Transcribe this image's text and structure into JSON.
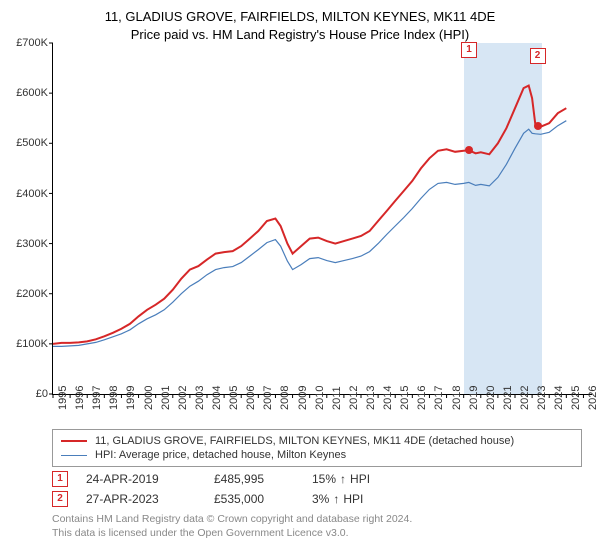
{
  "title_line1": "11, GLADIUS GROVE, FAIRFIELDS, MILTON KEYNES, MK11 4DE",
  "title_line2": "Price paid vs. HM Land Registry's House Price Index (HPI)",
  "chart": {
    "type": "line",
    "xlim": [
      1995,
      2026.5
    ],
    "ylim": [
      0,
      700000
    ],
    "ytick_step": 100000,
    "ytick_labels": [
      "£0",
      "£100K",
      "£200K",
      "£300K",
      "£400K",
      "£500K",
      "£600K",
      "£700K"
    ],
    "xticks": [
      1995,
      1996,
      1997,
      1998,
      1999,
      2000,
      2001,
      2002,
      2003,
      2004,
      2005,
      2006,
      2007,
      2008,
      2009,
      2010,
      2011,
      2012,
      2013,
      2014,
      2015,
      2016,
      2017,
      2018,
      2019,
      2020,
      2021,
      2022,
      2023,
      2024,
      2025,
      2026
    ],
    "background_color": "#ffffff",
    "border_color": "#000000",
    "tick_font_size": 11,
    "highlight_band_color": "#d7e6f4",
    "highlight_band_x": [
      2019.0,
      2023.6
    ],
    "series": [
      {
        "label": "11, GLADIUS GROVE, FAIRFIELDS, MILTON KEYNES, MK11 4DE (detached house)",
        "color": "#d62728",
        "line_width": 2,
        "points": [
          [
            1995.0,
            100000
          ],
          [
            1995.5,
            102000
          ],
          [
            1996.0,
            102000
          ],
          [
            1996.5,
            103000
          ],
          [
            1997.0,
            105000
          ],
          [
            1997.5,
            109000
          ],
          [
            1998.0,
            115000
          ],
          [
            1998.5,
            122000
          ],
          [
            1999.0,
            130000
          ],
          [
            1999.5,
            140000
          ],
          [
            2000.0,
            155000
          ],
          [
            2000.5,
            168000
          ],
          [
            2001.0,
            178000
          ],
          [
            2001.5,
            190000
          ],
          [
            2002.0,
            208000
          ],
          [
            2002.5,
            230000
          ],
          [
            2003.0,
            248000
          ],
          [
            2003.5,
            255000
          ],
          [
            2004.0,
            268000
          ],
          [
            2004.5,
            280000
          ],
          [
            2005.0,
            283000
          ],
          [
            2005.5,
            285000
          ],
          [
            2006.0,
            295000
          ],
          [
            2006.5,
            310000
          ],
          [
            2007.0,
            325000
          ],
          [
            2007.5,
            345000
          ],
          [
            2008.0,
            350000
          ],
          [
            2008.3,
            335000
          ],
          [
            2008.7,
            300000
          ],
          [
            2009.0,
            280000
          ],
          [
            2009.5,
            295000
          ],
          [
            2010.0,
            310000
          ],
          [
            2010.5,
            312000
          ],
          [
            2011.0,
            305000
          ],
          [
            2011.5,
            300000
          ],
          [
            2012.0,
            305000
          ],
          [
            2012.5,
            310000
          ],
          [
            2013.0,
            315000
          ],
          [
            2013.5,
            325000
          ],
          [
            2014.0,
            345000
          ],
          [
            2014.5,
            365000
          ],
          [
            2015.0,
            385000
          ],
          [
            2015.5,
            405000
          ],
          [
            2016.0,
            425000
          ],
          [
            2016.5,
            450000
          ],
          [
            2017.0,
            470000
          ],
          [
            2017.5,
            485000
          ],
          [
            2018.0,
            488000
          ],
          [
            2018.5,
            483000
          ],
          [
            2019.0,
            485000
          ],
          [
            2019.3,
            486000
          ],
          [
            2019.7,
            480000
          ],
          [
            2020.0,
            482000
          ],
          [
            2020.5,
            478000
          ],
          [
            2021.0,
            500000
          ],
          [
            2021.5,
            530000
          ],
          [
            2022.0,
            570000
          ],
          [
            2022.5,
            610000
          ],
          [
            2022.8,
            615000
          ],
          [
            2023.0,
            590000
          ],
          [
            2023.2,
            535000
          ],
          [
            2023.5,
            533000
          ],
          [
            2024.0,
            540000
          ],
          [
            2024.5,
            560000
          ],
          [
            2025.0,
            570000
          ]
        ]
      },
      {
        "label": "HPI: Average price, detached house, Milton Keynes",
        "color": "#4a7ebb",
        "line_width": 1.2,
        "points": [
          [
            1995.0,
            95000
          ],
          [
            1995.5,
            95000
          ],
          [
            1996.0,
            96000
          ],
          [
            1996.5,
            97000
          ],
          [
            1997.0,
            100000
          ],
          [
            1997.5,
            103000
          ],
          [
            1998.0,
            108000
          ],
          [
            1998.5,
            114000
          ],
          [
            1999.0,
            120000
          ],
          [
            1999.5,
            128000
          ],
          [
            2000.0,
            140000
          ],
          [
            2000.5,
            150000
          ],
          [
            2001.0,
            158000
          ],
          [
            2001.5,
            168000
          ],
          [
            2002.0,
            183000
          ],
          [
            2002.5,
            200000
          ],
          [
            2003.0,
            215000
          ],
          [
            2003.5,
            225000
          ],
          [
            2004.0,
            238000
          ],
          [
            2004.5,
            248000
          ],
          [
            2005.0,
            252000
          ],
          [
            2005.5,
            254000
          ],
          [
            2006.0,
            262000
          ],
          [
            2006.5,
            275000
          ],
          [
            2007.0,
            288000
          ],
          [
            2007.5,
            302000
          ],
          [
            2008.0,
            308000
          ],
          [
            2008.3,
            295000
          ],
          [
            2008.7,
            265000
          ],
          [
            2009.0,
            248000
          ],
          [
            2009.5,
            258000
          ],
          [
            2010.0,
            270000
          ],
          [
            2010.5,
            272000
          ],
          [
            2011.0,
            266000
          ],
          [
            2011.5,
            262000
          ],
          [
            2012.0,
            266000
          ],
          [
            2012.5,
            270000
          ],
          [
            2013.0,
            275000
          ],
          [
            2013.5,
            284000
          ],
          [
            2014.0,
            300000
          ],
          [
            2014.5,
            318000
          ],
          [
            2015.0,
            335000
          ],
          [
            2015.5,
            352000
          ],
          [
            2016.0,
            370000
          ],
          [
            2016.5,
            390000
          ],
          [
            2017.0,
            408000
          ],
          [
            2017.5,
            420000
          ],
          [
            2018.0,
            422000
          ],
          [
            2018.5,
            418000
          ],
          [
            2019.0,
            420000
          ],
          [
            2019.3,
            422000
          ],
          [
            2019.7,
            416000
          ],
          [
            2020.0,
            418000
          ],
          [
            2020.5,
            415000
          ],
          [
            2021.0,
            432000
          ],
          [
            2021.5,
            458000
          ],
          [
            2022.0,
            490000
          ],
          [
            2022.5,
            520000
          ],
          [
            2022.8,
            528000
          ],
          [
            2023.0,
            520000
          ],
          [
            2023.2,
            519000
          ],
          [
            2023.5,
            518000
          ],
          [
            2024.0,
            522000
          ],
          [
            2024.5,
            535000
          ],
          [
            2025.0,
            545000
          ]
        ]
      }
    ],
    "sale_markers": [
      {
        "n": "1",
        "x": 2019.31,
        "y": 485995,
        "color": "#d62728",
        "label_y_offset": -108
      },
      {
        "n": "2",
        "x": 2023.32,
        "y": 535000,
        "color": "#d62728",
        "label_y_offset": -78
      }
    ]
  },
  "legend": {
    "border_color": "#999999",
    "font_size": 11
  },
  "sales": [
    {
      "n": "1",
      "date": "24-APR-2019",
      "price": "£485,995",
      "pct": "15%",
      "arrow": "↑",
      "suffix": "HPI",
      "color": "#d62728"
    },
    {
      "n": "2",
      "date": "27-APR-2023",
      "price": "£535,000",
      "pct": "3%",
      "arrow": "↑",
      "suffix": "HPI",
      "color": "#d62728"
    }
  ],
  "footer_line1": "Contains HM Land Registry data © Crown copyright and database right 2024.",
  "footer_line2": "This data is licensed under the Open Government Licence v3.0."
}
